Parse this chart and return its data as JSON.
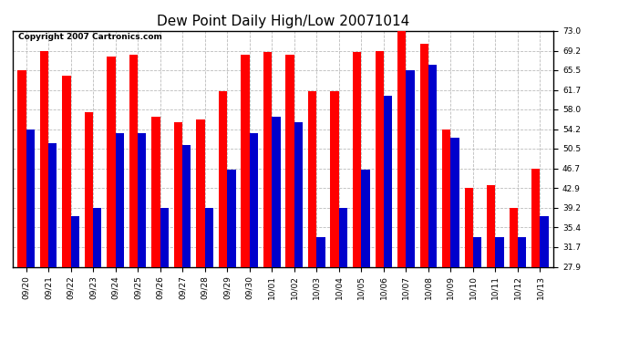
{
  "title": "Dew Point Daily High/Low 20071014",
  "copyright": "Copyright 2007 Cartronics.com",
  "categories": [
    "09/20",
    "09/21",
    "09/22",
    "09/23",
    "09/24",
    "09/25",
    "09/26",
    "09/27",
    "09/28",
    "09/29",
    "09/30",
    "10/01",
    "10/02",
    "10/03",
    "10/04",
    "10/05",
    "10/06",
    "10/07",
    "10/08",
    "10/09",
    "10/10",
    "10/11",
    "10/12",
    "10/13"
  ],
  "highs": [
    65.5,
    69.2,
    64.5,
    57.5,
    68.0,
    68.5,
    56.5,
    55.5,
    56.0,
    61.5,
    68.5,
    69.0,
    68.5,
    61.5,
    61.5,
    69.0,
    69.2,
    73.0,
    70.5,
    54.2,
    43.0,
    43.5,
    39.2,
    46.7
  ],
  "lows": [
    54.2,
    51.5,
    37.5,
    39.2,
    53.5,
    53.5,
    39.2,
    51.2,
    39.2,
    46.5,
    53.5,
    56.5,
    55.5,
    33.5,
    39.2,
    46.5,
    60.5,
    65.5,
    66.5,
    52.5,
    33.5,
    33.5,
    33.5,
    37.5
  ],
  "bar_width": 0.38,
  "high_color": "#ff0000",
  "low_color": "#0000cc",
  "bg_color": "#ffffff",
  "grid_color": "#bbbbbb",
  "yticks": [
    27.9,
    31.7,
    35.4,
    39.2,
    42.9,
    46.7,
    50.5,
    54.2,
    58.0,
    61.7,
    65.5,
    69.2,
    73.0
  ],
  "ymin": 27.9,
  "ymax": 73.0,
  "title_fontsize": 11,
  "tick_fontsize": 6.5,
  "copyright_fontsize": 6.5
}
